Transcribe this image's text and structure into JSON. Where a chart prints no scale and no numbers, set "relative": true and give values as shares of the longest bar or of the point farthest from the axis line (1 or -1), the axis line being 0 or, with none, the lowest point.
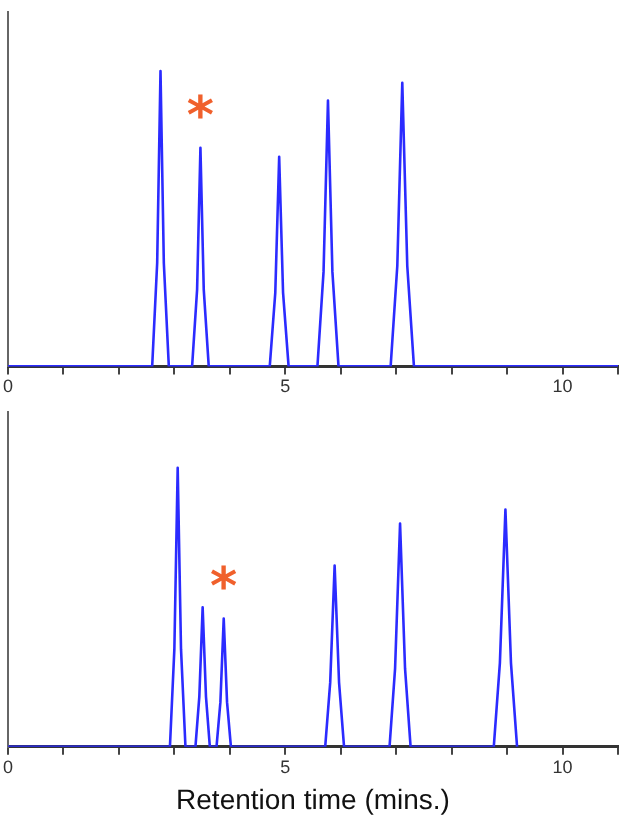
{
  "chart_data": [
    {
      "type": "line",
      "relative": true,
      "xlim": [
        0,
        11
      ],
      "xticks": [
        0,
        {
          "value": 1,
          "label": null
        },
        {
          "value": 2,
          "label": null
        },
        {
          "value": 3,
          "label": null
        },
        {
          "value": 4,
          "label": null
        },
        5,
        {
          "value": 6,
          "label": null
        },
        {
          "value": 7,
          "label": null
        },
        {
          "value": 8,
          "label": null
        },
        {
          "value": 9,
          "label": null
        },
        10,
        {
          "value": 11,
          "label": null
        }
      ],
      "series": [
        {
          "color": "#2b2bff",
          "x": [
            0,
            2.6,
            2.69,
            2.75,
            2.81,
            2.9,
            3.32,
            3.41,
            3.47,
            3.53,
            3.62,
            4.72,
            4.82,
            4.89,
            4.96,
            5.06,
            5.58,
            5.69,
            5.77,
            5.85,
            5.96,
            6.9,
            7.02,
            7.11,
            7.2,
            7.32,
            11
          ],
          "values": [
            0,
            0,
            0.35,
            1,
            0.35,
            0,
            0,
            0.26,
            0.74,
            0.26,
            0,
            0,
            0.25,
            0.71,
            0.25,
            0,
            0,
            0.32,
            0.9,
            0.32,
            0,
            0,
            0.34,
            0.96,
            0.34,
            0,
            0
          ]
        }
      ],
      "annotations": [
        {
          "text": "*",
          "x": 3.47,
          "y": 0.74
        }
      ],
      "grid": false,
      "legend": false,
      "marker": "none",
      "line_style": "solid"
    },
    {
      "type": "line",
      "relative": true,
      "xlim": [
        0,
        11
      ],
      "xlabel": "Retention time (mins.)",
      "xticks": [
        0,
        {
          "value": 1,
          "label": null
        },
        {
          "value": 2,
          "label": null
        },
        {
          "value": 3,
          "label": null
        },
        {
          "value": 4,
          "label": null
        },
        5,
        {
          "value": 6,
          "label": null
        },
        {
          "value": 7,
          "label": null
        },
        {
          "value": 8,
          "label": null
        },
        {
          "value": 9,
          "label": null
        },
        10,
        {
          "value": 11,
          "label": null
        }
      ],
      "series": [
        {
          "color": "#2b2bff",
          "x": [
            0,
            2.92,
            3.0,
            3.06,
            3.12,
            3.2,
            3.38,
            3.45,
            3.51,
            3.57,
            3.64,
            3.76,
            3.83,
            3.89,
            3.95,
            4.02,
            5.72,
            5.81,
            5.89,
            5.97,
            6.06,
            6.88,
            6.98,
            7.07,
            7.16,
            7.26,
            8.76,
            8.87,
            8.97,
            9.07,
            9.18
          ],
          "values": [
            0,
            0,
            0.35,
            1,
            0.35,
            0,
            0,
            0.18,
            0.5,
            0.18,
            0,
            0,
            0.16,
            0.46,
            0.16,
            0,
            0,
            0.23,
            0.65,
            0.23,
            0,
            0,
            0.28,
            0.8,
            0.28,
            0,
            0,
            0.3,
            0.85,
            0.3,
            0
          ]
        }
      ],
      "annotations": [
        {
          "text": "*",
          "x": 3.89,
          "y": 0.46
        }
      ],
      "grid": false,
      "legend": false,
      "marker": "none",
      "line_style": "solid"
    }
  ]
}
